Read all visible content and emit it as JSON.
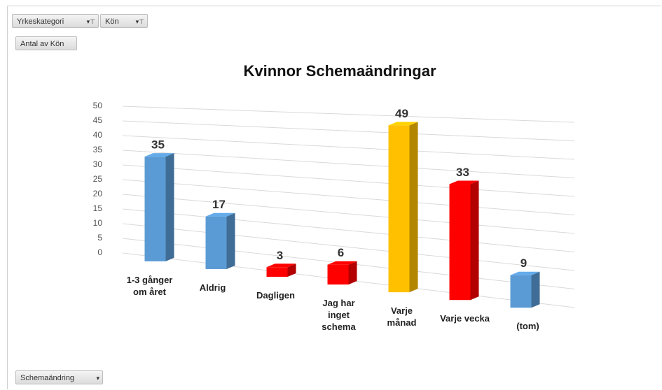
{
  "pivot_fields": {
    "filters": [
      "Yrkeskategori",
      "Kön"
    ],
    "value_field": "Antal av Kön",
    "axis_field": "Schemaändring"
  },
  "chart_data": {
    "type": "bar3d",
    "title": "Kvinnor  Schemaändringar",
    "categories": [
      "1-3 gånger\nom året",
      "Aldrig",
      "Dagligen",
      "Jag har\ninget\nschema",
      "Varje\nmånad",
      "Varje vecka",
      "(tom)"
    ],
    "series": [
      {
        "values": [
          35,
          17,
          3,
          6,
          49,
          33,
          9
        ],
        "colors": [
          "#5b9bd5",
          "#5b9bd5",
          "#ff0000",
          "#ff0000",
          "#ffc000",
          "#ff0000",
          "#5b9bd5"
        ]
      }
    ],
    "ylim": [
      0,
      50
    ],
    "yticks": [
      0,
      5,
      10,
      15,
      20,
      25,
      30,
      35,
      40,
      45,
      50
    ],
    "grid": true
  }
}
